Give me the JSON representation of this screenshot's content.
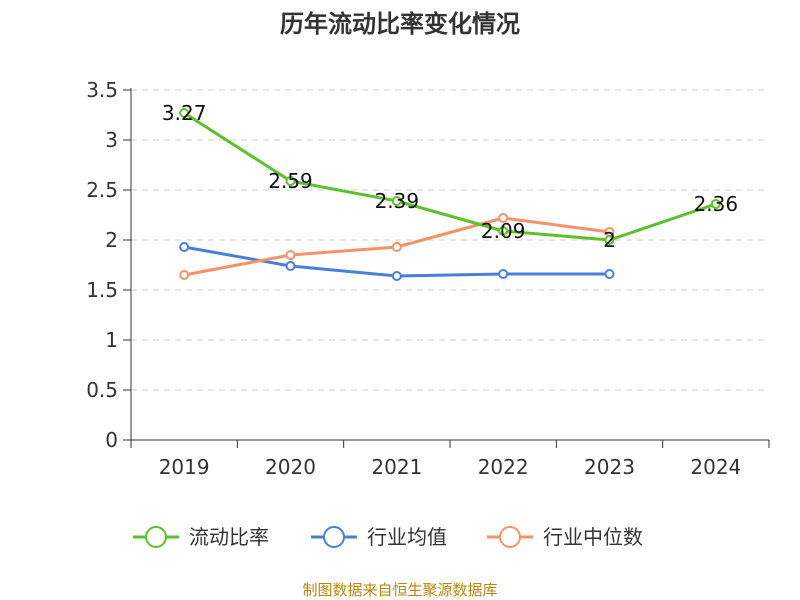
{
  "chart_data": {
    "type": "line",
    "title": "历年流动比率变化情况",
    "categories": [
      "2019",
      "2020",
      "2021",
      "2022",
      "2023",
      "2024"
    ],
    "ylim": [
      0,
      3.5
    ],
    "yticks": [
      0,
      0.5,
      1,
      1.5,
      2,
      2.5,
      3,
      3.5
    ],
    "ytick_labels": [
      "0",
      "0.5",
      "1",
      "1.5",
      "2",
      "2.5",
      "3",
      "3.5"
    ],
    "grid": true,
    "legend_position": "bottom",
    "series": [
      {
        "name": "流动比率",
        "color": "#5cc12b",
        "values": [
          3.27,
          2.59,
          2.39,
          2.09,
          2.0,
          2.36
        ],
        "labels": [
          "3.27",
          "2.59",
          "2.39",
          "2.09",
          "2",
          "2.36"
        ]
      },
      {
        "name": "行业均值",
        "color": "#4a7fd8",
        "values": [
          1.93,
          1.74,
          1.64,
          1.66,
          1.66,
          null
        ]
      },
      {
        "name": "行业中位数",
        "color": "#f5926a",
        "values": [
          1.65,
          1.85,
          1.93,
          2.22,
          2.08,
          null
        ]
      }
    ]
  },
  "source": "制图数据来自恒生聚源数据库"
}
